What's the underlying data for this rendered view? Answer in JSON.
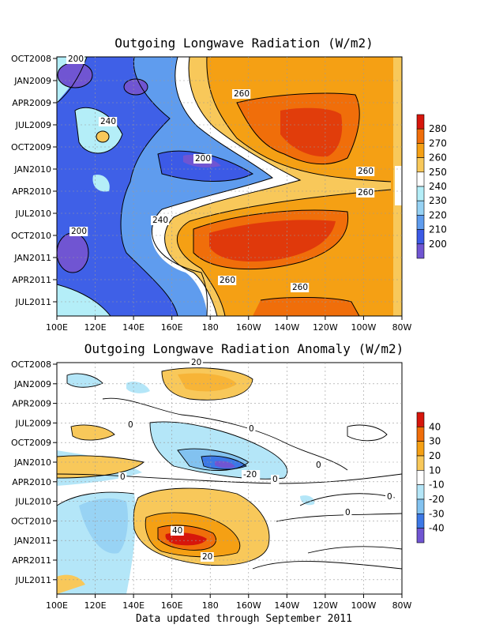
{
  "chart_data": [
    {
      "type": "heatmap",
      "title": "Outgoing Longwave Radiation (W/m2)",
      "x_ticks": [
        "100E",
        "120E",
        "140E",
        "160E",
        "180",
        "160W",
        "140W",
        "120W",
        "100W",
        "80W"
      ],
      "y_ticks": [
        "OCT2008",
        "JAN2009",
        "APR2009",
        "JUL2009",
        "OCT2009",
        "JAN2010",
        "APR2010",
        "JUL2010",
        "OCT2010",
        "JAN2011",
        "APR2011",
        "JUL2011"
      ],
      "colorbar": {
        "labels": [
          "280",
          "270",
          "260",
          "250",
          "240",
          "230",
          "220",
          "210",
          "200"
        ],
        "colors": [
          "#d6160c",
          "#f06e0a",
          "#f5a014",
          "#f8c85a",
          "#ffffff",
          "#b4eef8",
          "#96d2f4",
          "#5f9cee",
          "#3c5ae6",
          "#7055d2"
        ]
      },
      "contour_labels": [
        "200",
        "200",
        "200",
        "240",
        "240",
        "260",
        "260",
        "260",
        "260",
        "260"
      ]
    },
    {
      "type": "heatmap",
      "title": "Outgoing Longwave Radiation Anomaly (W/m2)",
      "x_ticks": [
        "100E",
        "120E",
        "140E",
        "160E",
        "180",
        "160W",
        "140W",
        "120W",
        "100W",
        "80W"
      ],
      "y_ticks": [
        "OCT2008",
        "JAN2009",
        "APR2009",
        "JUL2009",
        "OCT2009",
        "JAN2010",
        "APR2010",
        "JUL2010",
        "OCT2010",
        "JAN2011",
        "APR2011",
        "JUL2011"
      ],
      "colorbar": {
        "labels": [
          "40",
          "30",
          "20",
          "10",
          "-10",
          "-20",
          "-30",
          "-40"
        ],
        "colors": [
          "#d6160c",
          "#f06e0a",
          "#f5a014",
          "#f8c85a",
          "#ffffff",
          "#b4e6f8",
          "#82c2f0",
          "#3c78e6",
          "#7055d2"
        ]
      },
      "contour_labels": [
        "20",
        "0",
        "0",
        "0",
        "-20",
        "0",
        "0",
        "0",
        "0",
        "40",
        "20"
      ]
    }
  ],
  "footer": "Data updated through September 2011"
}
